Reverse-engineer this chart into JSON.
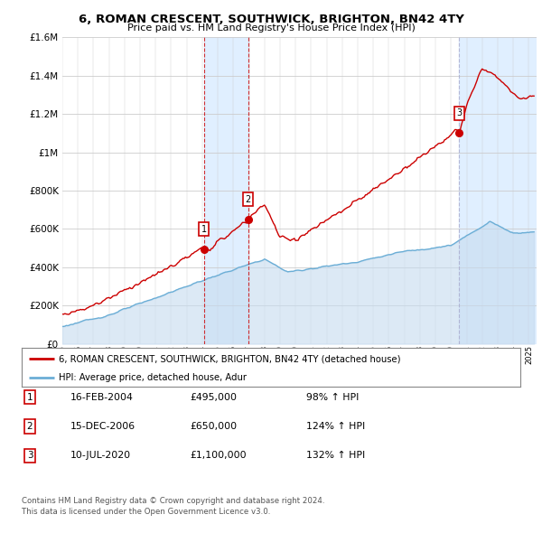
{
  "title": "6, ROMAN CRESCENT, SOUTHWICK, BRIGHTON, BN42 4TY",
  "subtitle": "Price paid vs. HM Land Registry's House Price Index (HPI)",
  "legend_line1": "6, ROMAN CRESCENT, SOUTHWICK, BRIGHTON, BN42 4TY (detached house)",
  "legend_line2": "HPI: Average price, detached house, Adur",
  "footer1": "Contains HM Land Registry data © Crown copyright and database right 2024.",
  "footer2": "This data is licensed under the Open Government Licence v3.0.",
  "transactions": [
    {
      "num": 1,
      "date": "16-FEB-2004",
      "price": "£495,000",
      "pct": "98% ↑ HPI",
      "year": 2004.12
    },
    {
      "num": 2,
      "date": "15-DEC-2006",
      "price": "£650,000",
      "pct": "124% ↑ HPI",
      "year": 2006.96
    },
    {
      "num": 3,
      "date": "10-JUL-2020",
      "price": "£1,100,000",
      "pct": "132% ↑ HPI",
      "year": 2020.53
    }
  ],
  "hpi_color": "#6baed6",
  "hpi_fill_color": "#c6dbef",
  "price_color": "#cc0000",
  "background_color": "#ffffff",
  "grid_color": "#cccccc",
  "transaction_box_color": "#cc0000",
  "transaction3_line_color": "#aaaacc",
  "span_color": "#ddeeff",
  "ylim": [
    0,
    1600000
  ],
  "xlim_start": 1995.0,
  "xlim_end": 2025.5
}
